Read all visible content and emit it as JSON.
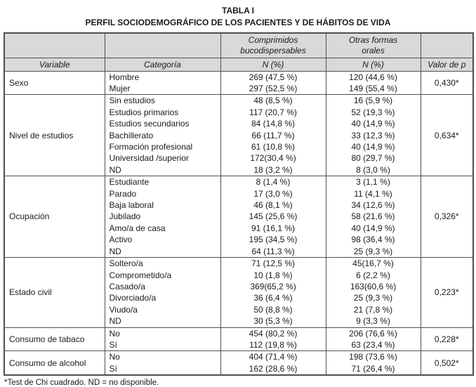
{
  "title": {
    "line1": "TABLA I",
    "line2": "PERFIL SOCIODEMOGRÁFICO DE LOS PACIENTES Y DE HÁBITOS DE VIDA"
  },
  "table": {
    "header": {
      "groups": [
        "Comprimidos\nbucodispersables",
        "Otras formas\norales"
      ],
      "cols": [
        "Variable",
        "Categoría",
        "N (%)",
        "N (%)",
        "Valor de p"
      ]
    },
    "sections": [
      {
        "variable": "Sexo",
        "p": "0,430*",
        "rows": [
          {
            "cat": "Hombre",
            "c1": "269 (47,5 %)",
            "c2": "120 (44,6 %)"
          },
          {
            "cat": "Mujer",
            "c1": "297 (52,5 %)",
            "c2": "149 (55,4 %)"
          }
        ]
      },
      {
        "variable": "Nivel de estudios",
        "p": "0,634*",
        "rows": [
          {
            "cat": "Sin estudios",
            "c1": "48 (8,5 %)",
            "c2": "16 (5,9 %)"
          },
          {
            "cat": "Estudios primarios",
            "c1": "117 (20,7 %)",
            "c2": "52 (19,3 %)"
          },
          {
            "cat": "Estudios secundarios",
            "c1": "84 (14,8 %)",
            "c2": "40 (14,9 %)"
          },
          {
            "cat": "Bachillerato",
            "c1": "66 (11,7 %)",
            "c2": "33 (12,3 %)"
          },
          {
            "cat": "Formación profesional",
            "c1": "61 (10,8 %)",
            "c2": "40 (14,9 %)"
          },
          {
            "cat": "Universidad /superior",
            "c1": "172(30,4 %)",
            "c2": "80 (29,7 %)"
          },
          {
            "cat": "ND",
            "c1": "18 (3,2 %)",
            "c2": "8 (3,0 %)"
          }
        ]
      },
      {
        "variable": "Ocupación",
        "p": "0,326*",
        "rows": [
          {
            "cat": "Estudiante",
            "c1": "8 (1,4 %)",
            "c2": "3 (1,1 %)"
          },
          {
            "cat": "Parado",
            "c1": "17 (3,0 %)",
            "c2": "11 (4,1 %)"
          },
          {
            "cat": "Baja laboral",
            "c1": "46 (8,1 %)",
            "c2": "34 (12,6 %)"
          },
          {
            "cat": "Jubilado",
            "c1": "145 (25,6 %)",
            "c2": "58 (21,6 %)"
          },
          {
            "cat": "Amo/a de casa",
            "c1": "91 (16,1 %)",
            "c2": "40 (14,9 %)"
          },
          {
            "cat": "Activo",
            "c1": "195 (34,5 %)",
            "c2": "98 (36,4 %)"
          },
          {
            "cat": "ND",
            "c1": "64 (11,3 %)",
            "c2": "25 (9,3 %)"
          }
        ]
      },
      {
        "variable": "Estado civil",
        "p": "0,223*",
        "rows": [
          {
            "cat": "Soltero/a",
            "c1": "71 (12,5 %)",
            "c2": "45(16,7 %)"
          },
          {
            "cat": "Comprometido/a",
            "c1": "10 (1,8 %)",
            "c2": "6 (2,2 %)"
          },
          {
            "cat": "Casado/a",
            "c1": "369(65,2 %)",
            "c2": "163(60,6 %)"
          },
          {
            "cat": "Divorciado/a",
            "c1": "36 (6,4 %)",
            "c2": "25 (9,3 %)"
          },
          {
            "cat": "Viudo/a",
            "c1": "50 (8,8 %)",
            "c2": "21 (7,8 %)"
          },
          {
            "cat": "ND",
            "c1": "30 (5,3 %)",
            "c2": "9 (3,3 %)"
          }
        ]
      },
      {
        "variable": "Consumo de tabaco",
        "p": "0,228*",
        "rows": [
          {
            "cat": "No",
            "c1": "454 (80,2 %)",
            "c2": "206 (76,6 %)"
          },
          {
            "cat": "Sí",
            "c1": "112 (19,8 %)",
            "c2": "63 (23,4 %)"
          }
        ]
      },
      {
        "variable": "Consumo de alcohol",
        "p": "0,502*",
        "rows": [
          {
            "cat": "No",
            "c1": "404 (71,4 %)",
            "c2": "198 (73,6 %)"
          },
          {
            "cat": "Sí",
            "c1": "162 (28,6 %)",
            "c2": "71 (26,4 %)"
          }
        ]
      }
    ]
  },
  "footnote": "*Test de Chi cuadrado. ND = no disponible."
}
